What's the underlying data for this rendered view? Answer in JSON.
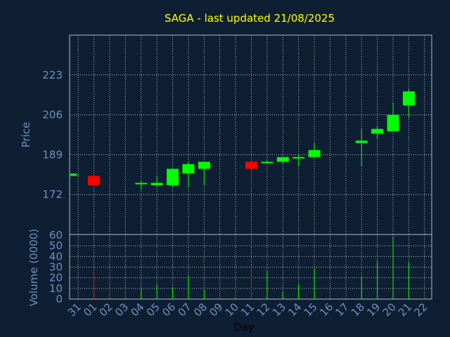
{
  "chart_data": {
    "type": "candlestick",
    "title": "SAGA - last updated 21/08/2025",
    "xlabel": "Day",
    "price_panel": {
      "ylabel": "Price",
      "yticks": [
        172,
        189,
        206,
        223
      ],
      "ylim": [
        155,
        240
      ],
      "grid": true
    },
    "volume_panel": {
      "ylabel": "Volume (0000)",
      "yticks": [
        0,
        10,
        20,
        30,
        40,
        50,
        60
      ],
      "ylim": [
        0,
        60
      ],
      "grid": true
    },
    "x_tick_labels": [
      "31",
      "01",
      "02",
      "03",
      "04",
      "05",
      "06",
      "07",
      "08",
      "09",
      "10",
      "11",
      "12",
      "13",
      "14",
      "15",
      "16",
      "17",
      "18",
      "19",
      "20",
      "21",
      "22"
    ],
    "colors": {
      "up": "#00ff00",
      "down": "#ff0000",
      "background": "#0f1f33",
      "grid": "#b0b8c8",
      "title": "#ffff00",
      "axis_text": "#6f8fbf"
    },
    "candles": [
      {
        "day": "31",
        "open": 180,
        "close": 181,
        "high": 181,
        "low": 180,
        "volume": 0
      },
      {
        "day": "01",
        "open": 180,
        "close": 176,
        "high": 181,
        "low": 176,
        "volume": 24
      },
      {
        "day": "04",
        "open": 177,
        "close": 177,
        "high": 178,
        "low": 174,
        "volume": 10
      },
      {
        "day": "05",
        "open": 176,
        "close": 177,
        "high": 180,
        "low": 175,
        "volume": 14
      },
      {
        "day": "06",
        "open": 176,
        "close": 183,
        "high": 183,
        "low": 175,
        "volume": 11
      },
      {
        "day": "07",
        "open": 181,
        "close": 185,
        "high": 186,
        "low": 175,
        "volume": 22
      },
      {
        "day": "08",
        "open": 183,
        "close": 186,
        "high": 186,
        "low": 176,
        "volume": 9
      },
      {
        "day": "11",
        "open": 186,
        "close": 183,
        "high": 188,
        "low": 176,
        "volume": 30
      },
      {
        "day": "12",
        "open": 186,
        "close": 186,
        "high": 187,
        "low": 185,
        "volume": 27
      },
      {
        "day": "13",
        "open": 186,
        "close": 188,
        "high": 188,
        "low": 185,
        "volume": 7
      },
      {
        "day": "14",
        "open": 188,
        "close": 188,
        "high": 189,
        "low": 184,
        "volume": 14
      },
      {
        "day": "15",
        "open": 188,
        "close": 191,
        "high": 194,
        "low": 188,
        "volume": 29
      },
      {
        "day": "18",
        "open": 194,
        "close": 195,
        "high": 200,
        "low": 184,
        "volume": 21
      },
      {
        "day": "19",
        "open": 198,
        "close": 200,
        "high": 201,
        "low": 196,
        "volume": 36
      },
      {
        "day": "20",
        "open": 199,
        "close": 206,
        "high": 211,
        "low": 199,
        "volume": 59
      },
      {
        "day": "21",
        "open": 210,
        "close": 216,
        "high": 217,
        "low": 205,
        "volume": 35
      }
    ]
  }
}
